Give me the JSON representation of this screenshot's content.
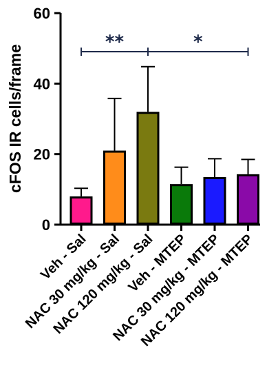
{
  "chart_data": {
    "type": "bar",
    "ylabel": "cFOS IR cells/frame",
    "ylim": [
      0,
      60
    ],
    "yticks": [
      0,
      20,
      40,
      60
    ],
    "grid": false,
    "categories": [
      "Veh - Sal",
      "NAC 30 mg/kg - Sal",
      "NAC 120 mg/kg - Sal",
      "Veh - MTEP",
      "NAC 30 mg/kg - MTEP",
      "NAC 120 mg/kg - MTEP"
    ],
    "values": [
      8,
      21,
      32,
      11.5,
      13.5,
      14.3
    ],
    "errors": [
      2.3,
      14.8,
      12.8,
      4.8,
      5.2,
      4.2
    ],
    "colors": [
      "#ff1a8c",
      "#ff8c1a",
      "#7a7a10",
      "#0a7a0a",
      "#1a1aff",
      "#8a0aa8"
    ],
    "significance": [
      {
        "from": 0,
        "to": 2,
        "label": "**"
      },
      {
        "from": 2,
        "to": 5,
        "label": "*"
      }
    ]
  }
}
